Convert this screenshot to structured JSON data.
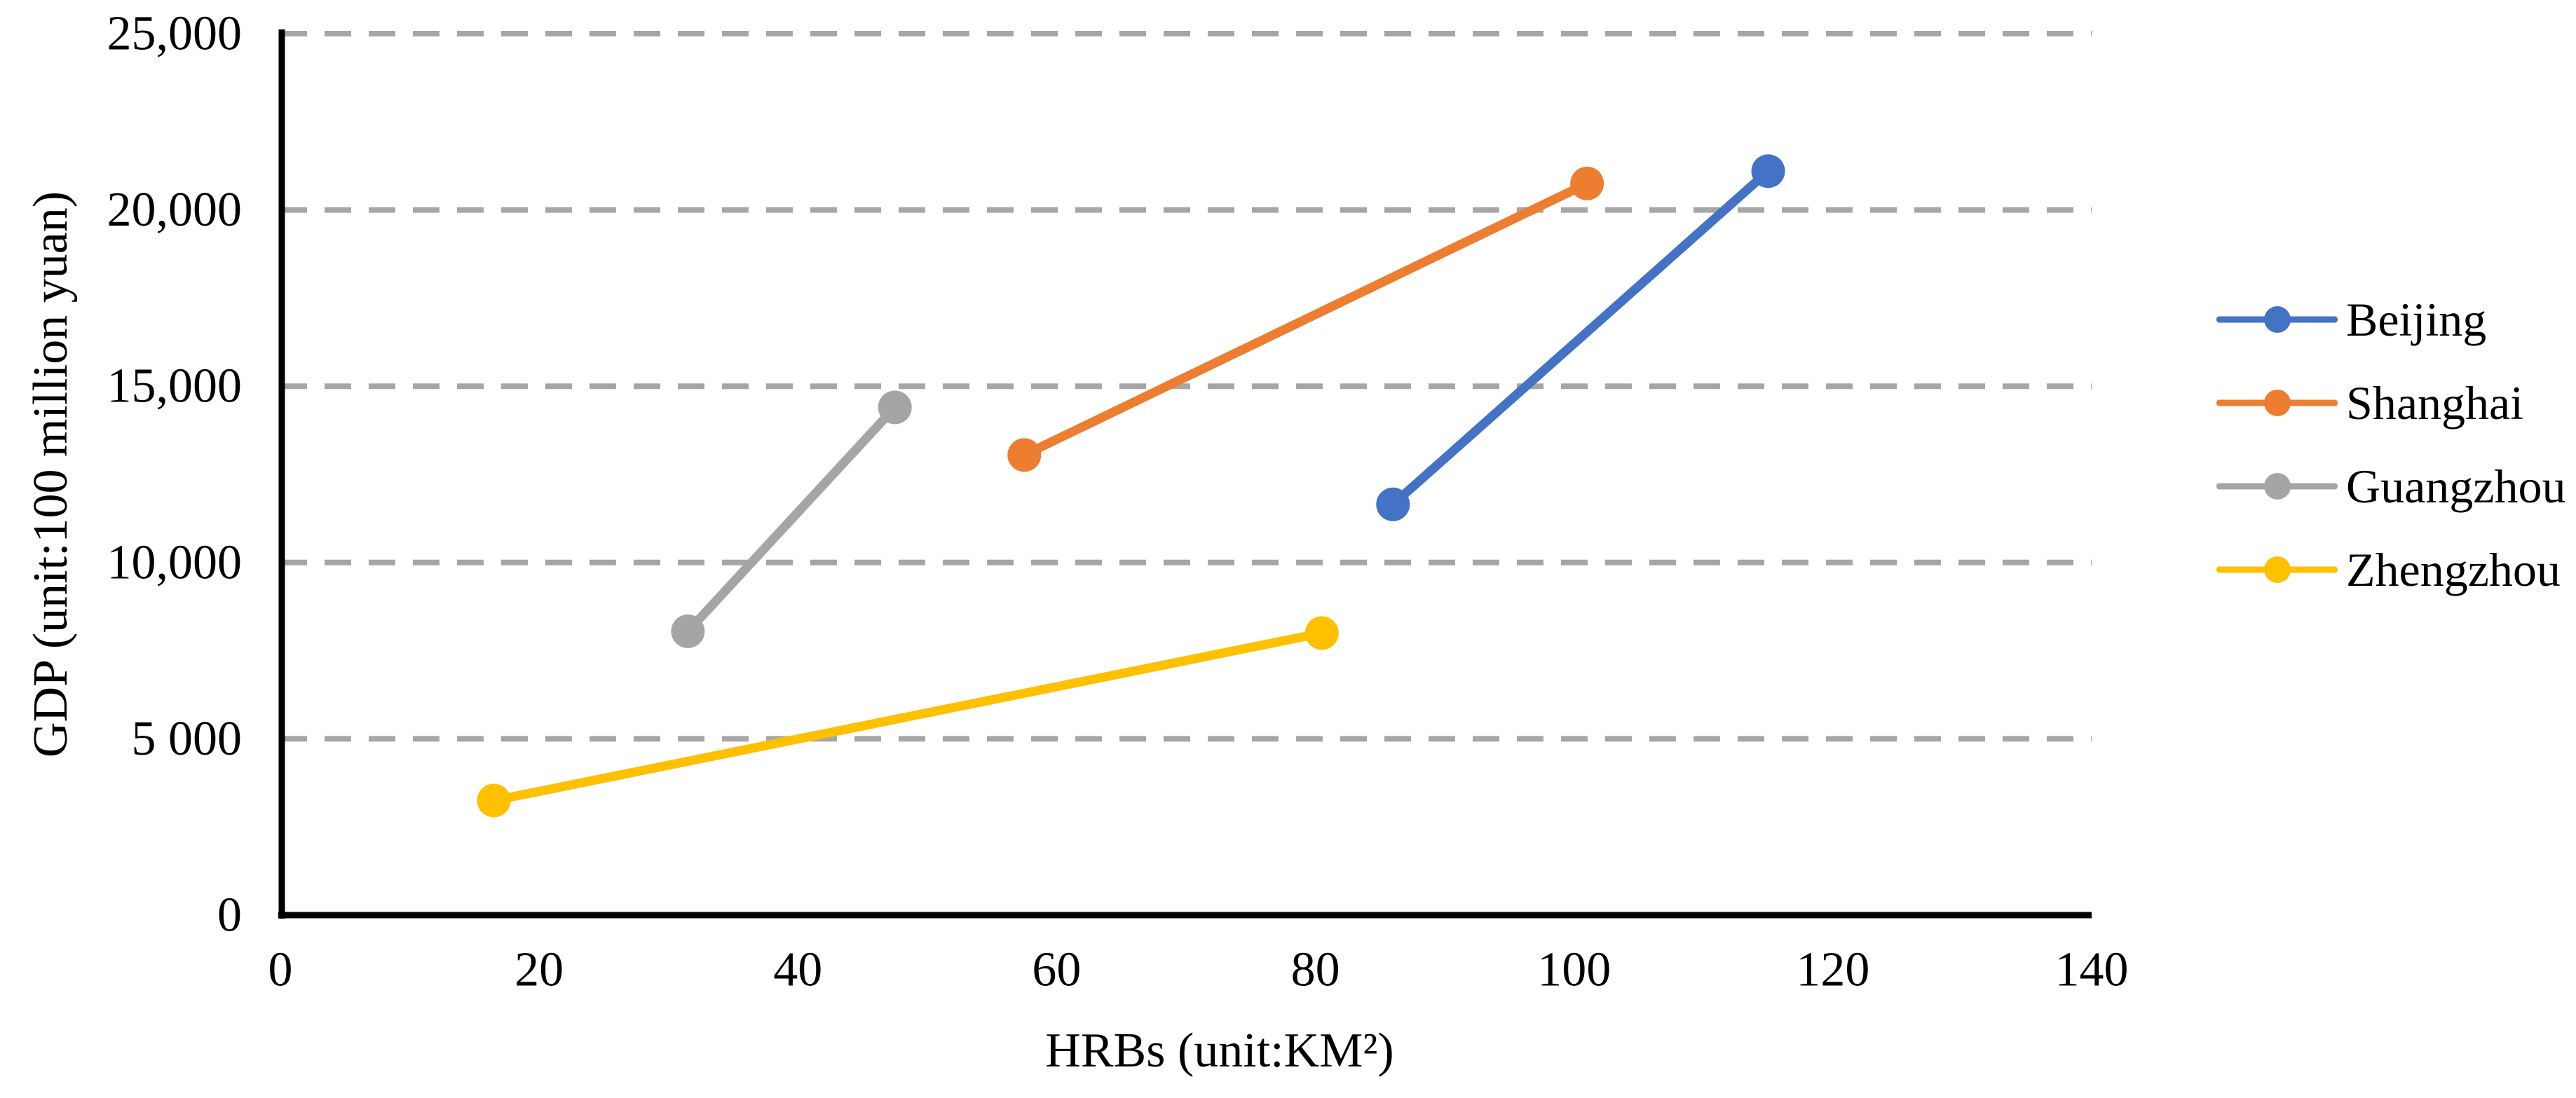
{
  "chart_data": {
    "type": "line",
    "title": "",
    "xlabel": "HRBs (unit:KM²)",
    "ylabel": "GDP (unit:100 million yuan)",
    "xlim": [
      0,
      140
    ],
    "ylim": [
      0,
      25000
    ],
    "xticks": [
      0,
      20,
      40,
      60,
      80,
      100,
      120,
      140
    ],
    "yticks": [
      {
        "value": 0,
        "label": "0"
      },
      {
        "value": 5000,
        "label": "5 000"
      },
      {
        "value": 10000,
        "label": "10,000"
      },
      {
        "value": 15000,
        "label": "15,000"
      },
      {
        "value": 20000,
        "label": "20,000"
      },
      {
        "value": 25000,
        "label": "25,000"
      }
    ],
    "grid": "horizontal-dashed",
    "legend_position": "right",
    "series": [
      {
        "name": "Beijing",
        "color": "#4472C4",
        "points": [
          [
            86,
            11650
          ],
          [
            115,
            21100
          ]
        ]
      },
      {
        "name": "Shanghai",
        "color": "#ED7D31",
        "points": [
          [
            57.5,
            13050
          ],
          [
            101,
            20750
          ]
        ]
      },
      {
        "name": "Guangzhou",
        "color": "#A5A5A5",
        "points": [
          [
            31.5,
            8050
          ],
          [
            47.5,
            14400
          ]
        ]
      },
      {
        "name": "Zhengzhou",
        "color": "#FFC000",
        "points": [
          [
            16.5,
            3250
          ],
          [
            80.5,
            8000
          ]
        ]
      }
    ]
  },
  "styles": {
    "background": "#FFFFFF",
    "axis_color": "#000000",
    "grid_color": "#A6A6A6",
    "text_color": "#000000"
  }
}
